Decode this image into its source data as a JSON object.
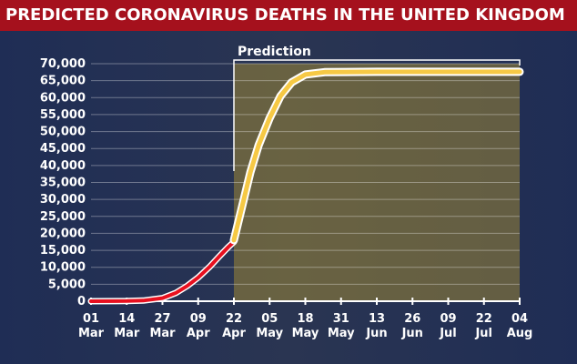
{
  "title": "PREDICTED CORONAVIRUS DEATHS IN THE UNITED KINGDOM",
  "chart_data": {
    "type": "line",
    "title": "PREDICTED CORONAVIRUS DEATHS IN THE UNITED KINGDOM",
    "ylim": [
      0,
      70000
    ],
    "yticks": [
      "70,000",
      "65,000",
      "60,000",
      "55,000",
      "50,000",
      "45,000",
      "40,000",
      "35,000",
      "30,000",
      "25,000",
      "20,000",
      "15,000",
      "10,000",
      "5,000",
      "0"
    ],
    "ytick_values": [
      70000,
      65000,
      60000,
      55000,
      50000,
      45000,
      40000,
      35000,
      30000,
      25000,
      20000,
      15000,
      10000,
      5000,
      0
    ],
    "xticks": [
      {
        "day": "01",
        "month": "Mar"
      },
      {
        "day": "14",
        "month": "Mar"
      },
      {
        "day": "27",
        "month": "Mar"
      },
      {
        "day": "09",
        "month": "Apr"
      },
      {
        "day": "22",
        "month": "Apr"
      },
      {
        "day": "05",
        "month": "May"
      },
      {
        "day": "18",
        "month": "May"
      },
      {
        "day": "31",
        "month": "May"
      },
      {
        "day": "13",
        "month": "Jun"
      },
      {
        "day": "26",
        "month": "Jun"
      },
      {
        "day": "09",
        "month": "Jul"
      },
      {
        "day": "22",
        "month": "Jul"
      },
      {
        "day": "04",
        "month": "Aug"
      }
    ],
    "xlim": [
      "2020-03-01",
      "2020-08-04"
    ],
    "prediction_label": "Prediction",
    "prediction_start": "2020-04-22",
    "series": [
      {
        "name": "",
        "color": "#e8101f",
        "points": [
          [
            "2020-03-01",
            0
          ],
          [
            "2020-03-14",
            50
          ],
          [
            "2020-03-20",
            200
          ],
          [
            "2020-03-27",
            900
          ],
          [
            "2020-04-01",
            2500
          ],
          [
            "2020-04-05",
            4500
          ],
          [
            "2020-04-09",
            7000
          ],
          [
            "2020-04-13",
            10000
          ],
          [
            "2020-04-17",
            13500
          ],
          [
            "2020-04-20",
            16000
          ],
          [
            "2020-04-22",
            17500
          ]
        ]
      },
      {
        "name": "Prediction",
        "color": "#f6c945",
        "points": [
          [
            "2020-04-22",
            18000
          ],
          [
            "2020-04-25",
            28000
          ],
          [
            "2020-04-28",
            38000
          ],
          [
            "2020-05-01",
            46000
          ],
          [
            "2020-05-05",
            54000
          ],
          [
            "2020-05-09",
            60500
          ],
          [
            "2020-05-13",
            64500
          ],
          [
            "2020-05-18",
            66800
          ],
          [
            "2020-05-25",
            67500
          ],
          [
            "2020-06-13",
            67600
          ],
          [
            "2020-08-04",
            67600
          ]
        ]
      }
    ]
  }
}
